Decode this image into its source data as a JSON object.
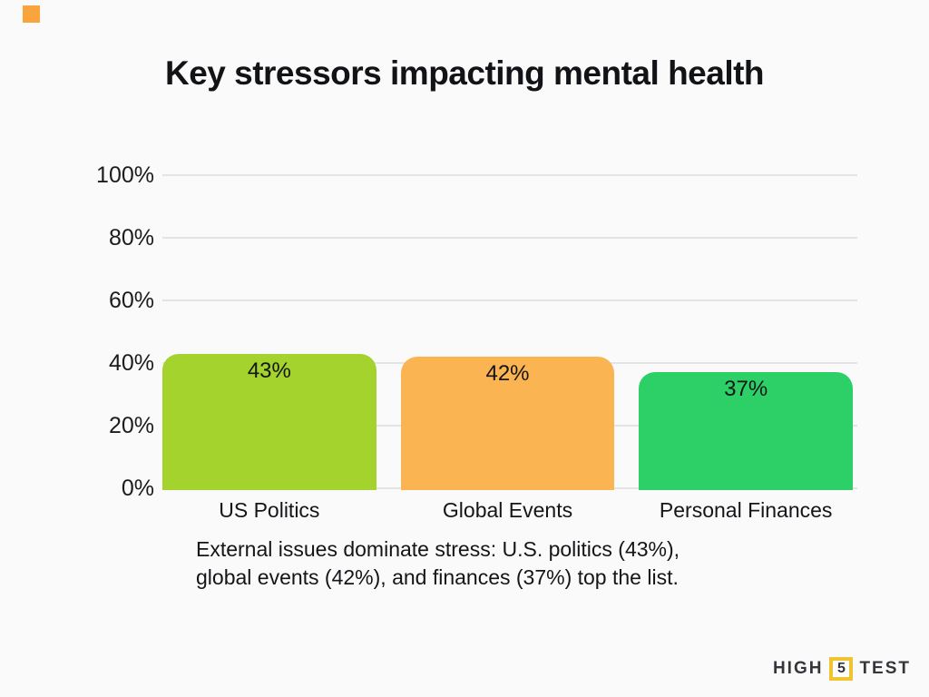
{
  "page": {
    "background_color": "#FAFAFA"
  },
  "decor": {
    "corner_square_color": "#F9A43C"
  },
  "title": "Key stressors impacting mental health",
  "chart_data": {
    "type": "bar",
    "title": "Key stressors impacting mental health",
    "categories": [
      "US Politics",
      "Global Events",
      "Personal Finances"
    ],
    "values": [
      43,
      42,
      37
    ],
    "bar_labels": [
      "43%",
      "42%",
      "37%"
    ],
    "bar_colors": [
      "#A3D32C",
      "#FBB452",
      "#2CD066"
    ],
    "xlabel": "",
    "ylabel": "",
    "ylim": [
      0,
      100
    ],
    "y_ticks": [
      {
        "label": "100%",
        "value": 100
      },
      {
        "label": "80%",
        "value": 80
      },
      {
        "label": "60%",
        "value": 60
      },
      {
        "label": "40%",
        "value": 40
      },
      {
        "label": "20%",
        "value": 20
      },
      {
        "label": "0%",
        "value": 0
      }
    ],
    "grid": true,
    "gridline_color": "#E4E4E6",
    "legend": false
  },
  "caption": {
    "line1": "External issues dominate stress: U.S. politics (43%),",
    "line2": "global events (42%), and finances (37%) top the list."
  },
  "logo": {
    "word1": "HIGH",
    "badge": "5",
    "word2": "TEST",
    "badge_color": "#F0C330",
    "text_color": "#33363A"
  }
}
